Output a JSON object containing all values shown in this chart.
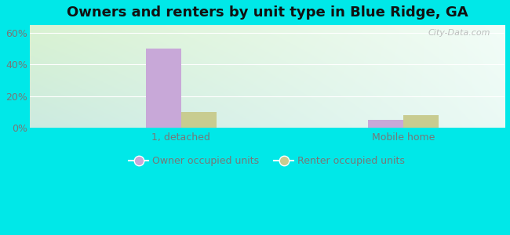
{
  "title": "Owners and renters by unit type in Blue Ridge, GA",
  "categories": [
    "1, detached",
    "Mobile home"
  ],
  "owner_values": [
    50,
    5
  ],
  "renter_values": [
    10,
    8
  ],
  "owner_color": "#c8a8d8",
  "renter_color": "#c8cc90",
  "yticks": [
    0,
    20,
    40,
    60
  ],
  "ytick_labels": [
    "0%",
    "20%",
    "40%",
    "60%"
  ],
  "ylim": [
    0,
    65
  ],
  "outer_bg": "#00e8e8",
  "watermark": "City-Data.com",
  "bar_width": 0.35,
  "group_positions": [
    1.0,
    3.2
  ],
  "title_fontsize": 13,
  "tick_fontsize": 9,
  "legend_fontsize": 9,
  "bg_topleft": [
    0.85,
    0.95,
    0.82,
    1.0
  ],
  "bg_topright": [
    0.95,
    0.99,
    0.97,
    1.0
  ],
  "bg_bottomleft": [
    0.8,
    0.92,
    0.88,
    1.0
  ],
  "bg_bottomright": [
    0.92,
    0.98,
    0.96,
    1.0
  ]
}
